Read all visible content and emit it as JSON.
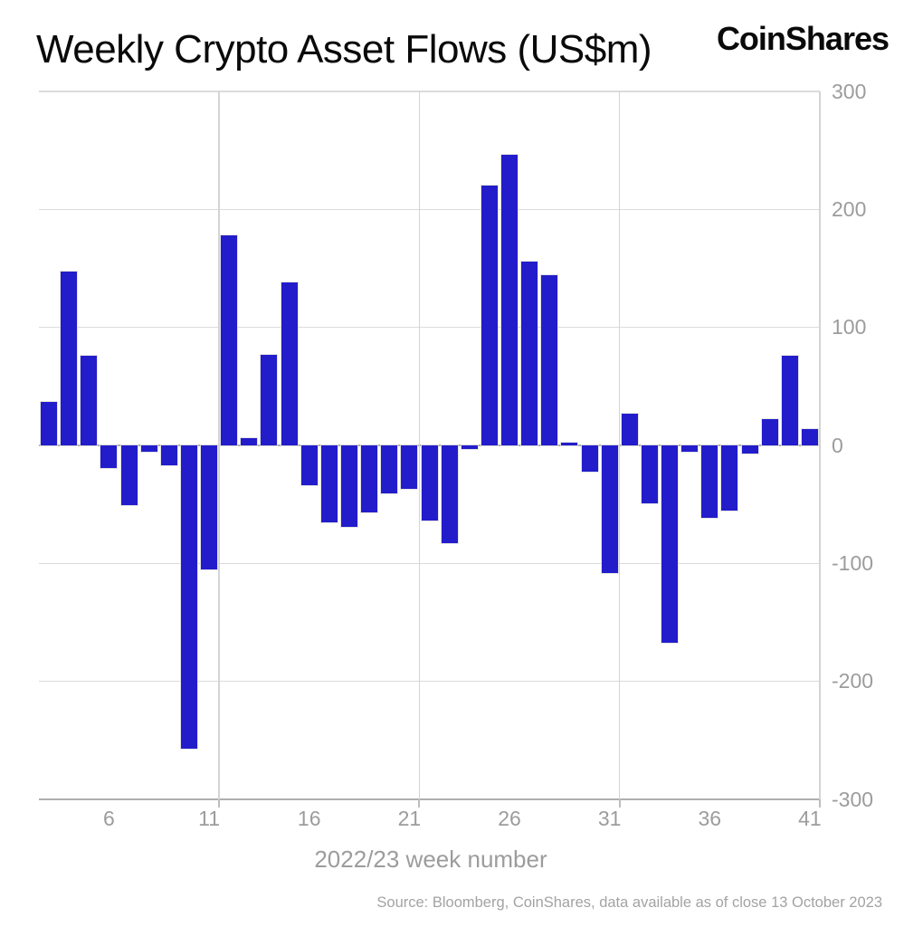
{
  "header": {
    "title": "Weekly Crypto Asset Flows (US$m)",
    "brand": "CoinShares"
  },
  "footer": {
    "source": "Source: Bloomberg, CoinShares, data available as of close 13 October 2023"
  },
  "chart_data": {
    "type": "bar",
    "title": "Weekly Crypto Asset Flows (US$m)",
    "xlabel": "2022/23 week number",
    "ylabel": "",
    "x": [
      3,
      4,
      5,
      6,
      7,
      8,
      9,
      10,
      11,
      12,
      13,
      14,
      15,
      16,
      17,
      18,
      19,
      20,
      21,
      22,
      23,
      24,
      25,
      26,
      27,
      28,
      29,
      30,
      31,
      32,
      33,
      34,
      35,
      36,
      37,
      38,
      39,
      40,
      41
    ],
    "values": [
      37,
      147,
      76,
      -19,
      -51,
      -5,
      -17,
      -257,
      -105,
      178,
      6,
      77,
      138,
      -34,
      -65,
      -69,
      -57,
      -41,
      -37,
      -64,
      -83,
      -3,
      220,
      246,
      156,
      144,
      2,
      -22,
      -108,
      27,
      -49,
      -167,
      -5,
      -61,
      -55,
      -7,
      22,
      76,
      14
    ],
    "ylim": [
      -300,
      300
    ],
    "yticks": [
      300,
      200,
      100,
      0,
      -100,
      -200,
      -300
    ],
    "xticks": [
      6,
      11,
      16,
      21,
      26,
      31,
      36,
      41
    ],
    "vgridlines_after_weeks": [
      11,
      21,
      31,
      41
    ],
    "grid": true,
    "legend_position": "none",
    "bar_color": "#231ccb",
    "grid_color": "#dbdbdb",
    "axis_color": "#aeaeae",
    "tick_label_color": "#9c9c9c"
  }
}
